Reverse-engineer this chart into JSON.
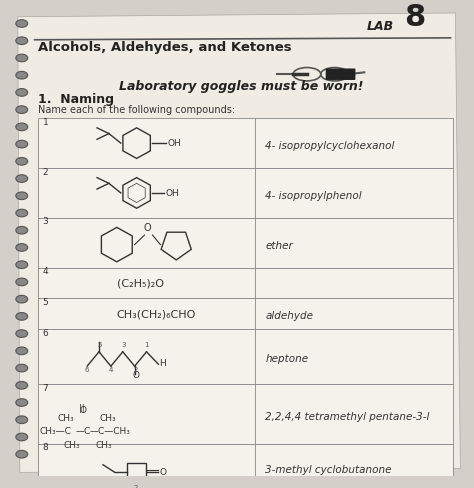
{
  "title_lab": "LAB",
  "title_lab_num": "8",
  "title_main": "Alcohols, Aldehydes, and Ketones",
  "warning": "Laboratory goggles must be worn!",
  "section": "1.  Naming",
  "section_sub": "Name each of the following compounds:",
  "bg_color": "#d4cfc8",
  "paper_color": "#f0ece4",
  "table_bg": "#f5f2ec",
  "rows": [
    {
      "num": "1",
      "left": "cyclohexanol_iso",
      "right": "4- isopropylcyclohexanol"
    },
    {
      "num": "2",
      "left": "isopropylphenol",
      "right": "4- isopropylphenol"
    },
    {
      "num": "3",
      "left": "ether_rings",
      "right": "ether"
    },
    {
      "num": "4",
      "left": "(C₂H₅)₂O",
      "right": ""
    },
    {
      "num": "5",
      "left": "CH₃(CH₂)₆CHO",
      "right": "aldehyde"
    },
    {
      "num": "6",
      "left": "ketone_structure",
      "right": "heptone"
    },
    {
      "num": "7",
      "left": "tetramethyl_structure",
      "right": "2,2,4,4 tetramethyl pentane-3-l"
    },
    {
      "num": "8",
      "left": "cyclobutanone",
      "right": "3-methyl cyclobutanone"
    }
  ]
}
